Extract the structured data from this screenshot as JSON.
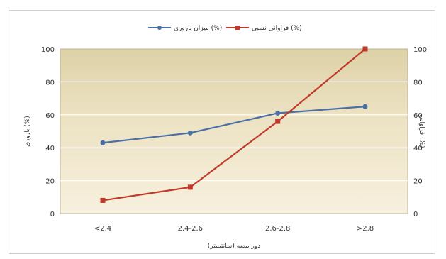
{
  "chart_data": {
    "type": "line",
    "categories": [
      "<2.4",
      "2.4-2.6",
      "2.6-2.8",
      ">2.8"
    ],
    "series": [
      {
        "name": "میزان باروری (%)",
        "values": [
          43,
          49,
          61,
          65
        ],
        "color": "#4a6fa5",
        "marker": "circle",
        "axis": "left"
      },
      {
        "name": "فراوانی نسبی (%)",
        "values": [
          8,
          16,
          56,
          100
        ],
        "color": "#c0392b",
        "marker": "square",
        "axis": "right"
      }
    ],
    "ylim": [
      0,
      100
    ],
    "yticks": [
      0,
      20,
      40,
      60,
      80,
      100
    ],
    "ylabel_left": "باروری (%)",
    "ylabel_right": "فراوانی (%)",
    "xlabel": "دور بیضه (سانتیمتر)",
    "grid": true,
    "legend_position": "top"
  }
}
